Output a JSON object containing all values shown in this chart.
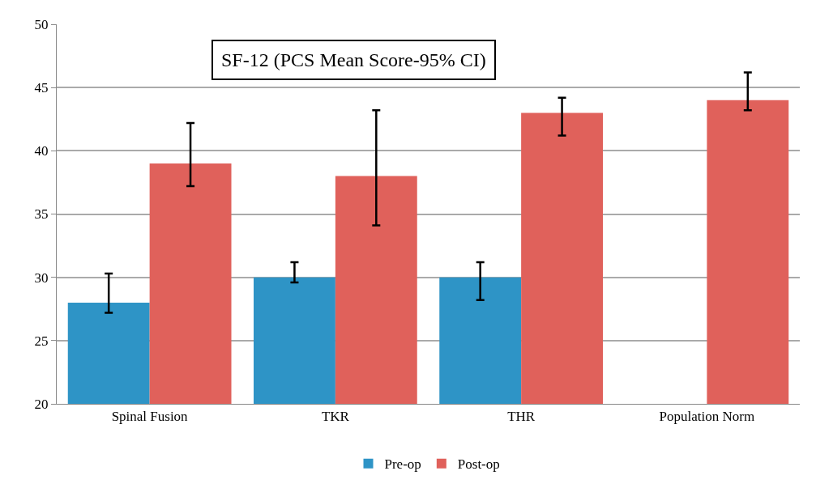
{
  "chart_data": {
    "type": "bar",
    "title": "SF-12 (PCS Mean Score-95% CI)",
    "categories": [
      "Spinal Fusion",
      "TKR",
      "THR",
      "Population Norm"
    ],
    "series": [
      {
        "name": "Pre-op",
        "color": "#2e94c6",
        "values": [
          28,
          30,
          30,
          null
        ],
        "errors": [
          [
            27.2,
            30.3
          ],
          [
            29.6,
            31.2
          ],
          [
            28.2,
            31.2
          ],
          null
        ]
      },
      {
        "name": "Post-op",
        "color": "#e0615b",
        "values": [
          39,
          38,
          43,
          44
        ],
        "errors": [
          [
            37.2,
            42.2
          ],
          [
            34.1,
            43.2
          ],
          [
            41.2,
            44.2
          ],
          [
            43.2,
            46.2
          ]
        ]
      }
    ],
    "ylim": [
      20,
      50
    ],
    "yticks": [
      20,
      25,
      30,
      35,
      40,
      45,
      50
    ],
    "grid": "y",
    "legend": "bottom"
  }
}
